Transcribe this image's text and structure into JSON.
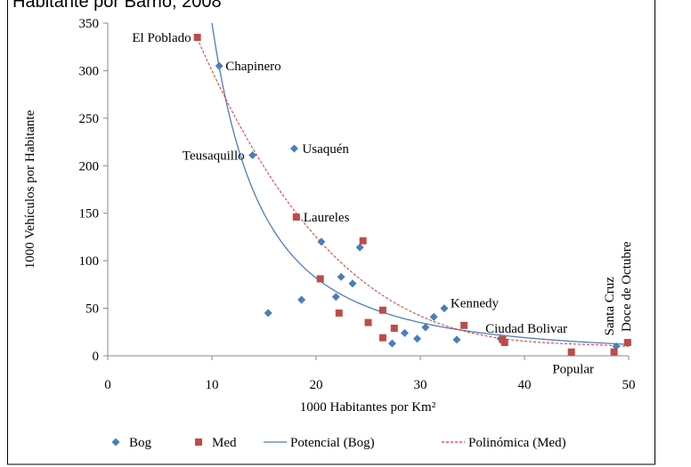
{
  "chart_data": {
    "type": "scatter",
    "title": "Habitante por Barrio, 2008",
    "x_label": "1000 Habitantes por Km²",
    "y_label": "1000 Vehículos por Habitante",
    "xlim": [
      0,
      50
    ],
    "ylim": [
      0,
      350
    ],
    "xticks": [
      0,
      10,
      20,
      30,
      40,
      50
    ],
    "yticks": [
      0,
      50,
      100,
      150,
      200,
      250,
      300,
      350
    ],
    "grid": false,
    "legend": "bottom",
    "series": [
      {
        "name": "Bog",
        "color": "#4a7ebb",
        "marker": "diamond",
        "x": [
          10.7,
          13.9,
          17.9,
          15.4,
          18.6,
          20.5,
          21.9,
          22.4,
          23.5,
          24.2,
          27.3,
          28.5,
          29.7,
          30.5,
          31.3,
          32.3,
          33.5,
          37.7,
          48.8
        ],
        "values": [
          305,
          211,
          218,
          45,
          59,
          120,
          62,
          83,
          76,
          114,
          13,
          24,
          18,
          30,
          41,
          50,
          17,
          18,
          10
        ],
        "labels": [
          "Chapinero",
          "Teusaquillo",
          "Usaquén",
          null,
          null,
          null,
          null,
          null,
          null,
          null,
          null,
          null,
          null,
          null,
          null,
          "Kennedy",
          null,
          "Ciudad Bolivar",
          "Santa Cruz"
        ]
      },
      {
        "name": "Med",
        "color": "#be4b48",
        "marker": "square",
        "x": [
          8.6,
          18.1,
          24.5,
          20.4,
          22.2,
          26.4,
          25.0,
          27.5,
          26.4,
          34.2,
          37.9,
          38.1,
          44.5,
          48.6,
          49.9
        ],
        "values": [
          335,
          146,
          121,
          81,
          45,
          48,
          35,
          29,
          19,
          32,
          17,
          14,
          4,
          4,
          14
        ],
        "labels": [
          "El Poblado",
          "Laureles",
          null,
          null,
          null,
          null,
          null,
          null,
          null,
          null,
          null,
          null,
          "Popular",
          null,
          "Doce de Octubre"
        ]
      }
    ],
    "trendlines": [
      {
        "name": "Potencial (Bog)",
        "kind": "power",
        "color": "#4a7ebb",
        "dashed": false,
        "coef": [
          43650,
          -2.096
        ],
        "x_range": [
          9.5,
          50
        ]
      },
      {
        "name": "Polinómica (Med)",
        "kind": "polynomial",
        "color": "#e0302a",
        "dashed": true,
        "coef": [
          602.5,
          -37.809,
          0.815,
          -0.005917
        ],
        "x_range": [
          8.6,
          50
        ]
      }
    ]
  }
}
